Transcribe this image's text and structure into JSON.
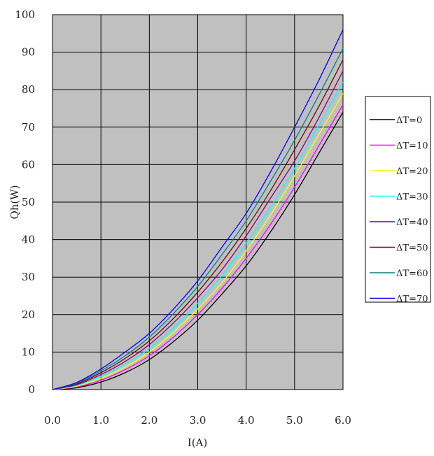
{
  "chart_data": {
    "type": "line",
    "xlabel": "I(A)",
    "ylabel": "Qh(W)",
    "xlim": [
      0,
      6
    ],
    "ylim": [
      0,
      100
    ],
    "x_ticks": [
      "0.0",
      "1.0",
      "2.0",
      "3.0",
      "4.0",
      "5.0",
      "6.0"
    ],
    "y_ticks": [
      "0",
      "10",
      "20",
      "30",
      "40",
      "50",
      "60",
      "70",
      "80",
      "90",
      "100"
    ],
    "grid": true,
    "plot_background": "#c0c0c0",
    "grid_color": "#000000",
    "legend_position": "right",
    "x": [
      0,
      0.5,
      1,
      1.5,
      2,
      2.5,
      3,
      3.5,
      4,
      4.5,
      5,
      5.5,
      6
    ],
    "series": [
      {
        "name": "ΔT=0",
        "color": "#000000",
        "values": [
          0,
          0.5,
          2,
          4.5,
          8,
          12.8,
          18.5,
          25.5,
          33,
          42,
          52,
          63,
          74
        ]
      },
      {
        "name": "ΔT=10",
        "color": "#ff00ff",
        "values": [
          0,
          0.7,
          2.5,
          5.3,
          9,
          14,
          20,
          27,
          35,
          44,
          54,
          65,
          76
        ]
      },
      {
        "name": "ΔT=20",
        "color": "#ffff00",
        "values": [
          0,
          0.9,
          3,
          6,
          10,
          15.3,
          21.5,
          28.5,
          37,
          46.5,
          57,
          68,
          79
        ]
      },
      {
        "name": "ΔT=30",
        "color": "#00ffff",
        "values": [
          0,
          1.1,
          3.5,
          6.8,
          11,
          16.5,
          23,
          30.5,
          39,
          48.5,
          59,
          70.5,
          82
        ]
      },
      {
        "name": "ΔT=40",
        "color": "#800080",
        "values": [
          0,
          1.3,
          4,
          7.5,
          12,
          17.8,
          24.5,
          32,
          41,
          51,
          61,
          72.5,
          85
        ]
      },
      {
        "name": "ΔT=50",
        "color": "#800000",
        "values": [
          0,
          1.5,
          4.5,
          8.3,
          13,
          19,
          26,
          34,
          43,
          53,
          64,
          75.5,
          88
        ]
      },
      {
        "name": "ΔT=60",
        "color": "#008080",
        "values": [
          0,
          1.7,
          5,
          9,
          14,
          20.3,
          27.5,
          36,
          45,
          55.5,
          66.5,
          78.5,
          91
        ]
      },
      {
        "name": "ΔT=70",
        "color": "#0000ff",
        "values": [
          0,
          1.9,
          5.5,
          10,
          15,
          21.5,
          29,
          38,
          47,
          58,
          70,
          82.5,
          96
        ]
      }
    ]
  }
}
